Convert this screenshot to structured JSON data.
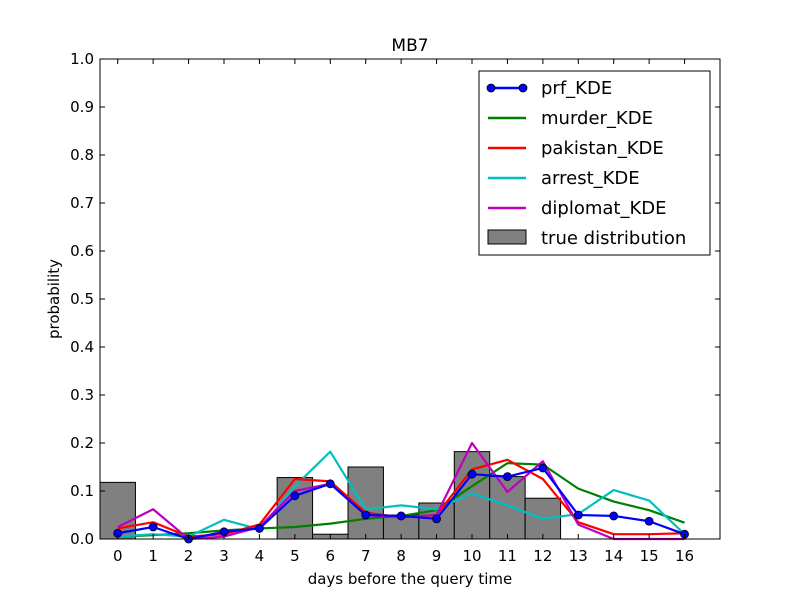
{
  "chart_data": {
    "type": "line",
    "title": "MB7",
    "xlabel": "days before the query time",
    "ylabel": "probability",
    "xlim": [
      -0.5,
      17
    ],
    "ylim": [
      0,
      1.0
    ],
    "xticks": [
      0,
      1,
      2,
      3,
      4,
      5,
      6,
      7,
      8,
      9,
      10,
      11,
      12,
      13,
      14,
      15,
      16
    ],
    "yticks": [
      "0.0",
      "0.1",
      "0.2",
      "0.3",
      "0.4",
      "0.5",
      "0.6",
      "0.7",
      "0.8",
      "0.9",
      "1.0"
    ],
    "grid": false,
    "legend_position": "top-right",
    "bars": {
      "name": "true distribution",
      "color": "#808080",
      "edge_color": "#000000",
      "x": [
        -0.5,
        0.5,
        1.5,
        2.5,
        3.5,
        4.5,
        5.5,
        6.5,
        7.5,
        8.5,
        9.5,
        10.5,
        11.5,
        12.5,
        13.5,
        14.5,
        15.5
      ],
      "values": [
        0.118,
        0.0,
        0.0,
        0.0,
        0.0,
        0.128,
        0.01,
        0.15,
        0.05,
        0.075,
        0.182,
        0.13,
        0.085,
        0.0,
        0.0,
        0.0,
        0.0
      ]
    },
    "x": [
      0,
      1,
      2,
      3,
      4,
      5,
      6,
      7,
      8,
      9,
      10,
      11,
      12,
      13,
      14,
      15,
      16
    ],
    "series": [
      {
        "name": "prf_KDE",
        "color": "#0000ff",
        "marker": "circle",
        "values": [
          0.012,
          0.025,
          0.0,
          0.015,
          0.022,
          0.09,
          0.115,
          0.05,
          0.048,
          0.042,
          0.135,
          0.13,
          0.148,
          0.05,
          0.048,
          0.037,
          0.01
        ]
      },
      {
        "name": "murder_KDE",
        "color": "#008000",
        "marker": "none",
        "values": [
          0.005,
          0.008,
          0.012,
          0.018,
          0.022,
          0.025,
          0.032,
          0.042,
          0.048,
          0.06,
          0.11,
          0.158,
          0.155,
          0.105,
          0.078,
          0.06,
          0.034
        ]
      },
      {
        "name": "pakistan_KDE",
        "color": "#ff0000",
        "marker": "none",
        "values": [
          0.022,
          0.035,
          0.005,
          0.01,
          0.03,
          0.125,
          0.12,
          0.055,
          0.045,
          0.05,
          0.145,
          0.165,
          0.125,
          0.035,
          0.01,
          0.01,
          0.012
        ]
      },
      {
        "name": "arrest_KDE",
        "color": "#00bfbf",
        "marker": "none",
        "values": [
          0.005,
          0.01,
          0.005,
          0.04,
          0.02,
          0.11,
          0.182,
          0.062,
          0.07,
          0.062,
          0.095,
          0.07,
          0.042,
          0.052,
          0.102,
          0.08,
          0.01
        ]
      },
      {
        "name": "diplomat_KDE",
        "color": "#bf00bf",
        "marker": "none",
        "values": [
          0.025,
          0.062,
          0.0,
          0.005,
          0.025,
          0.1,
          0.115,
          0.05,
          0.045,
          0.05,
          0.2,
          0.098,
          0.162,
          0.03,
          0.0,
          0.0,
          0.0
        ]
      }
    ]
  }
}
